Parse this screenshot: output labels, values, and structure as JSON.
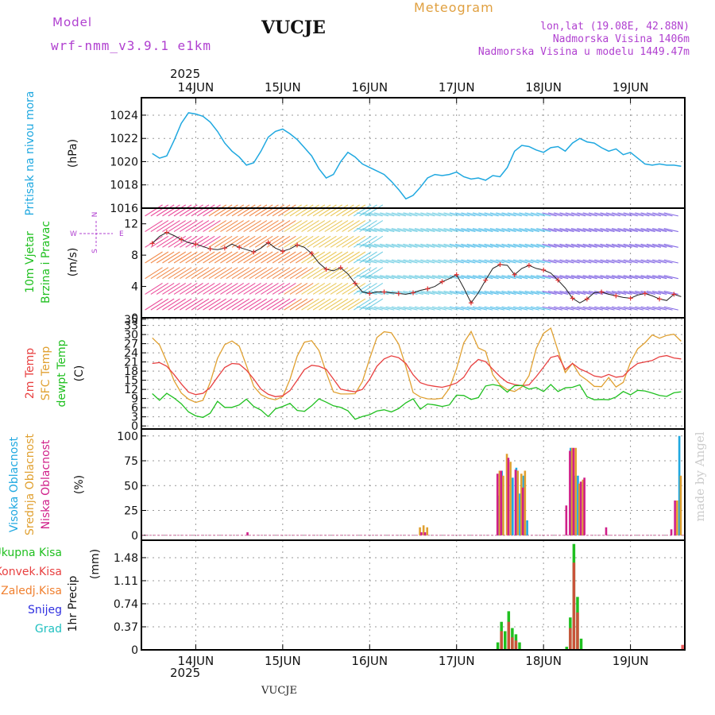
{
  "header": {
    "model_label": "Model",
    "model_name": "wrf-nmm_v3.9.1 e1km",
    "station": "VUCJE",
    "meteogram_label": "Meteogram",
    "lonlat": "lon,lat (19.08E, 42.88N)",
    "altitude": "Nadmorska Visina 1406m",
    "model_altitude": "Nadmorska Visina u modelu 1449.47m",
    "year_top": "2025",
    "year_bottom": "2025",
    "footer_station": "VUCJE",
    "watermark": "made by Angel"
  },
  "colors": {
    "pressure": "#1fa8e0",
    "wind_speed": "#e03030",
    "temp2m": "#e84040",
    "sfc_temp": "#e0a030",
    "dewpt": "#20c020",
    "high_cloud": "#1fa8e0",
    "mid_cloud": "#e0a030",
    "low_cloud": "#d0208a",
    "total_rain": "#20c020",
    "conv_rain": "#e84040",
    "strat_rain": "#f08030",
    "snow": "#3030e0",
    "hail": "#20c0c0",
    "header_purple": "#b040d0",
    "header_orange": "#e0a040"
  },
  "chart_data": [
    {
      "type": "line",
      "panel": "pressure",
      "ylabel": "Pritisak na nivou mora",
      "unit": "(hPa)",
      "x_ticks": [
        "14JUN",
        "15JUN",
        "16JUN",
        "17JUN",
        "18JUN",
        "19JUN"
      ],
      "yticks": [
        1016,
        1018,
        1020,
        1022,
        1024
      ],
      "ylim": [
        1016,
        1025.5
      ],
      "series": [
        {
          "name": "Pritisak na nivou mora",
          "x": [
            0,
            2,
            4,
            6,
            8,
            10,
            12,
            14,
            16,
            18,
            20,
            22,
            24,
            26,
            28,
            30,
            32,
            34,
            36,
            38,
            40,
            42,
            44,
            46,
            48,
            50,
            52,
            54,
            56,
            58,
            60,
            62,
            64,
            66,
            68,
            70,
            72,
            74,
            76,
            78,
            80,
            82,
            84,
            86,
            88,
            90,
            92,
            94,
            96,
            98,
            100,
            102,
            104,
            106,
            108,
            110,
            112,
            114,
            116,
            118,
            120,
            122,
            124,
            126,
            128,
            130,
            132,
            134,
            136,
            138,
            140,
            142,
            144,
            146
          ],
          "values": [
            1020.7,
            1020.3,
            1020.5,
            1021.8,
            1023.3,
            1024.2,
            1024.1,
            1023.9,
            1023.4,
            1022.6,
            1021.6,
            1020.9,
            1020.4,
            1019.7,
            1019.9,
            1020.9,
            1022.1,
            1022.6,
            1022.8,
            1022.4,
            1021.9,
            1021.2,
            1020.5,
            1019.4,
            1018.6,
            1018.9,
            1020.0,
            1020.8,
            1020.4,
            1019.8,
            1019.5,
            1019.2,
            1018.9,
            1018.3,
            1017.6,
            1016.8,
            1017.1,
            1017.8,
            1018.6,
            1018.9,
            1018.8,
            1018.9,
            1019.1,
            1018.7,
            1018.5,
            1018.6,
            1018.4,
            1018.8,
            1018.7,
            1019.5,
            1020.9,
            1021.4,
            1021.3,
            1021.0,
            1020.8,
            1021.2,
            1021.3,
            1020.9,
            1021.6,
            1022.0,
            1021.7,
            1021.6,
            1021.2,
            1020.9,
            1021.1,
            1020.6,
            1020.8,
            1020.3,
            1019.8,
            1019.7,
            1019.8,
            1019.7,
            1019.7,
            1019.6
          ]
        }
      ]
    },
    {
      "type": "line",
      "panel": "wind",
      "ylabel": "10m Vjetar Brzina i Pravac",
      "unit": "(m/s)",
      "compass": {
        "north": "N",
        "south": "S",
        "west": "W",
        "east": "E"
      },
      "yticks": [
        0,
        4,
        8,
        12
      ],
      "ylim": [
        0,
        14
      ],
      "series": [
        {
          "name": "Brzina",
          "x": [
            0,
            2,
            4,
            6,
            8,
            10,
            12,
            14,
            16,
            18,
            20,
            22,
            24,
            26,
            28,
            30,
            32,
            34,
            36,
            38,
            40,
            42,
            44,
            46,
            48,
            50,
            52,
            54,
            56,
            58,
            60,
            62,
            64,
            66,
            68,
            70,
            72,
            74,
            76,
            78,
            80,
            82,
            84,
            86,
            88,
            90,
            92,
            94,
            96,
            98,
            100,
            102,
            104,
            106,
            108,
            110,
            112,
            114,
            116,
            118,
            120,
            122,
            124,
            126,
            128,
            130,
            132,
            134,
            136,
            138,
            140,
            142,
            144,
            146
          ],
          "values": [
            9.5,
            10.4,
            10.9,
            10.5,
            10.0,
            9.6,
            9.4,
            9.1,
            8.8,
            8.7,
            8.9,
            9.4,
            9.0,
            8.7,
            8.4,
            8.9,
            9.6,
            8.9,
            8.5,
            8.8,
            9.3,
            9.0,
            8.2,
            7.0,
            6.2,
            6.0,
            6.4,
            5.6,
            4.4,
            3.3,
            3.1,
            3.3,
            3.3,
            3.2,
            3.1,
            3.0,
            3.2,
            3.5,
            3.7,
            4.0,
            4.6,
            5.0,
            5.5,
            3.8,
            1.9,
            3.2,
            4.8,
            6.3,
            6.8,
            6.7,
            5.5,
            6.3,
            6.7,
            6.3,
            6.1,
            5.7,
            4.8,
            3.8,
            2.5,
            1.9,
            2.4,
            3.2,
            3.3,
            3.0,
            2.8,
            2.6,
            2.5,
            2.9,
            3.1,
            2.8,
            2.4,
            2.2,
            3.0,
            2.7
          ]
        }
      ]
    },
    {
      "type": "line",
      "panel": "temperature",
      "unit": "(C)",
      "yticks": [
        0,
        3,
        6,
        9,
        12,
        15,
        18,
        21,
        24,
        27,
        30,
        33,
        35
      ],
      "ylim": [
        -1,
        35.5
      ],
      "series": [
        {
          "name": "2m Temp",
          "x": [
            0,
            2,
            4,
            6,
            8,
            10,
            12,
            14,
            16,
            18,
            20,
            22,
            24,
            26,
            28,
            30,
            32,
            34,
            36,
            38,
            40,
            42,
            44,
            46,
            48,
            50,
            52,
            54,
            56,
            58,
            60,
            62,
            64,
            66,
            68,
            70,
            72,
            74,
            76,
            78,
            80,
            82,
            84,
            86,
            88,
            90,
            92,
            94,
            96,
            98,
            100,
            102,
            104,
            106,
            108,
            110,
            112,
            114,
            116,
            118,
            120,
            122,
            124,
            126,
            128,
            130,
            132,
            134,
            136,
            138,
            140,
            142,
            144,
            146
          ],
          "values": [
            20.5,
            20.8,
            19.6,
            16.9,
            13.8,
            11.1,
            10.3,
            10.7,
            12.6,
            16.0,
            19.2,
            20.5,
            20.3,
            18.3,
            15.4,
            12.1,
            10.4,
            9.6,
            9.9,
            11.6,
            15.0,
            18.5,
            19.9,
            19.6,
            18.6,
            15.4,
            12.1,
            11.6,
            11.2,
            12.0,
            15.3,
            19.6,
            22.0,
            23.0,
            22.4,
            20.5,
            16.8,
            14.2,
            13.4,
            13.0,
            12.7,
            13.3,
            14.1,
            16.0,
            19.7,
            21.8,
            21.1,
            18.6,
            16.2,
            14.3,
            13.6,
            13.2,
            13.5,
            16.2,
            19.3,
            22.5,
            23.1,
            18.5,
            20.5,
            18.7,
            17.7,
            16.4,
            16.0,
            16.9,
            16.0,
            16.3,
            18.7,
            20.5,
            21.0,
            21.5,
            22.7,
            23.1,
            22.3,
            22.0
          ]
        },
        {
          "name": "SFC Temp",
          "x": [
            0,
            2,
            4,
            6,
            8,
            10,
            12,
            14,
            16,
            18,
            20,
            22,
            24,
            26,
            28,
            30,
            32,
            34,
            36,
            38,
            40,
            42,
            44,
            46,
            48,
            50,
            52,
            54,
            56,
            58,
            60,
            62,
            64,
            66,
            68,
            70,
            72,
            74,
            76,
            78,
            80,
            82,
            84,
            86,
            88,
            90,
            92,
            94,
            96,
            98,
            100,
            102,
            104,
            106,
            108,
            110,
            112,
            114,
            116,
            118,
            120,
            122,
            124,
            126,
            128,
            130,
            132,
            134,
            136,
            138,
            140,
            142,
            144,
            146
          ],
          "values": [
            28.9,
            26.6,
            21.1,
            14.9,
            10.8,
            8.8,
            7.7,
            8.4,
            14.3,
            22.2,
            26.7,
            27.9,
            26.2,
            19.8,
            13.0,
            10.3,
            9.1,
            8.6,
            9.6,
            15.3,
            22.9,
            27.5,
            28.0,
            24.8,
            17.6,
            11.2,
            10.5,
            10.5,
            10.6,
            14.6,
            22.1,
            29.0,
            30.9,
            30.6,
            26.9,
            19.5,
            11.0,
            9.5,
            8.9,
            8.8,
            9.1,
            12.3,
            18.8,
            27.3,
            31.0,
            25.6,
            24.5,
            16.8,
            13.5,
            11.9,
            11.3,
            12.8,
            16.5,
            25.4,
            30.4,
            32.1,
            24.7,
            17.5,
            20.6,
            16.7,
            15.0,
            13.0,
            12.9,
            15.9,
            12.8,
            14.3,
            20.9,
            25.3,
            27.3,
            29.9,
            28.8,
            29.7,
            30.1,
            27.8
          ]
        },
        {
          "name": "dewpt Temp",
          "x": [
            0,
            2,
            4,
            6,
            8,
            10,
            12,
            14,
            16,
            18,
            20,
            22,
            24,
            26,
            28,
            30,
            32,
            34,
            36,
            38,
            40,
            42,
            44,
            46,
            48,
            50,
            52,
            54,
            56,
            58,
            60,
            62,
            64,
            66,
            68,
            70,
            72,
            74,
            76,
            78,
            80,
            82,
            84,
            86,
            88,
            90,
            92,
            94,
            96,
            98,
            100,
            102,
            104,
            106,
            108,
            110,
            112,
            114,
            116,
            118,
            120,
            122,
            124,
            126,
            128,
            130,
            132,
            134,
            136,
            138,
            140,
            142,
            144,
            146
          ],
          "values": [
            10.6,
            8.4,
            10.7,
            9.2,
            7.3,
            4.6,
            3.3,
            2.8,
            4.2,
            8.1,
            6.1,
            6.1,
            6.9,
            8.8,
            6.4,
            5.2,
            3.1,
            5.6,
            6.4,
            7.4,
            5.1,
            4.8,
            6.6,
            8.9,
            7.8,
            6.6,
            6.1,
            5.0,
            2.2,
            3.1,
            3.7,
            4.9,
            5.3,
            4.6,
            5.7,
            7.6,
            8.9,
            5.5,
            7.2,
            6.9,
            6.4,
            6.9,
            10.1,
            10.0,
            8.7,
            9.3,
            13.1,
            13.6,
            13.1,
            11.1,
            13.2,
            13.3,
            12.1,
            12.6,
            11.3,
            13.6,
            11.3,
            12.5,
            12.7,
            13.5,
            9.6,
            8.6,
            8.7,
            8.6,
            9.5,
            11.3,
            10.2,
            11.7,
            11.5,
            10.8,
            10.0,
            9.7,
            10.9,
            11.2
          ]
        }
      ]
    },
    {
      "type": "bar",
      "panel": "clouds",
      "unit": "(%)",
      "yticks": [
        0,
        25,
        50,
        75,
        100
      ],
      "ylim": [
        -5,
        107
      ],
      "series": [
        {
          "name": "Visoka Oblacnost",
          "x": [
            95.2,
            96.2,
            99.2,
            100.2,
            101.2,
            102.2,
            103.2,
            115.2,
            116.2,
            117.2,
            145.2
          ],
          "values": [
            40,
            65,
            58,
            68,
            42,
            60,
            15,
            88,
            60,
            60,
            100
          ]
        },
        {
          "name": "Srednja Oblacnost",
          "x": [
            73.6,
            74.6,
            75.6,
            95.6,
            96.6,
            97.6,
            98.6,
            100.6,
            101.6,
            102.6,
            115.6,
            116.6,
            117.6,
            118.6,
            144.6,
            145.6
          ],
          "values": [
            8,
            10,
            8,
            65,
            60,
            82,
            74,
            65,
            62,
            65,
            88,
            88,
            52,
            56,
            35,
            60
          ]
        },
        {
          "name": "Niska Oblacnost",
          "x": [
            26.0,
            74.0,
            75.0,
            95.0,
            96.0,
            98.0,
            100.0,
            102.0,
            114.0,
            115.0,
            116.0,
            118.0,
            119.0,
            125.0,
            143.0,
            144.0
          ],
          "values": [
            3,
            3,
            3,
            62,
            65,
            78,
            66,
            48,
            30,
            85,
            88,
            54,
            58,
            8,
            6,
            35
          ]
        }
      ]
    },
    {
      "type": "bar",
      "panel": "precip",
      "ylabel": "1hr Precip",
      "unit": "(mm)",
      "yticks": [
        0,
        0.37,
        0.74,
        1.11,
        1.48
      ],
      "ylim": [
        0,
        1.76
      ],
      "legend": [
        "Ukupna Kisa",
        "Konvek.Kisa",
        "Zaledj.Kisa",
        "Snijeg",
        "Grad"
      ],
      "series": [
        {
          "name": "Ukupna Kisa",
          "x": [
            95,
            96,
            97,
            98,
            99,
            100,
            101,
            114,
            115,
            116,
            117,
            118
          ],
          "values": [
            0.12,
            0.45,
            0.3,
            0.62,
            0.35,
            0.25,
            0.12,
            0.05,
            0.52,
            1.7,
            0.85,
            0.18
          ]
        },
        {
          "name": "Konvek.Kisa",
          "x": [
            96,
            98,
            99,
            100,
            115,
            116,
            117,
            146
          ],
          "values": [
            0.3,
            0.45,
            0.2,
            0.15,
            0.35,
            1.4,
            0.6,
            0.08
          ]
        }
      ]
    }
  ]
}
